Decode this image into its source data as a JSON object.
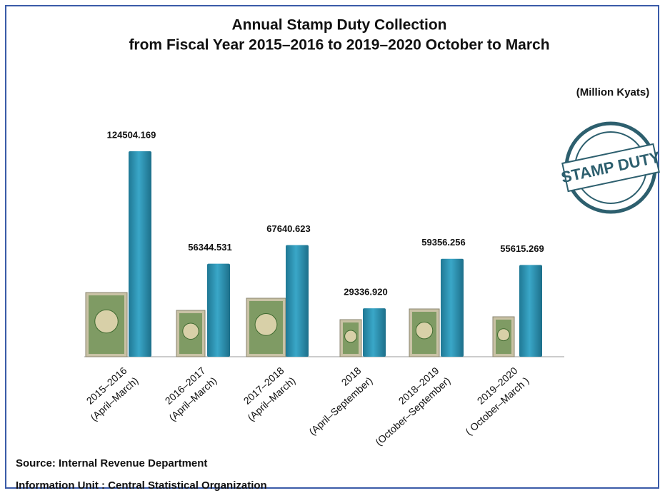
{
  "chart_data": {
    "type": "bar",
    "title": "Annual Stamp Duty Collection",
    "subtitle": "from Fiscal Year  2015–2016 to 2019–2020 October to March",
    "unit_note": "(Million Kyats)",
    "badge": "STAMP DUTY",
    "categories": [
      [
        "2015–2016",
        "(April–March)"
      ],
      [
        "2016–2017",
        "(April–March)"
      ],
      [
        "2017–2018",
        "(April–March)"
      ],
      [
        "2018",
        "(April–September)"
      ],
      [
        "2018–2019",
        "(October–September)"
      ],
      [
        "2019–2020",
        "( October–March )"
      ]
    ],
    "values": [
      124504.169,
      56344.531,
      67640.623,
      29336.92,
      59356.256,
      55615.269
    ],
    "value_labels": [
      "124504.169",
      "56344.531",
      "67640.623",
      "29336.920",
      "59356.256",
      "55615.269"
    ],
    "color": "#2e95b5",
    "source": "Source: Internal Revenue Department",
    "info": "Information Unit :  Central Statistical Organization"
  }
}
